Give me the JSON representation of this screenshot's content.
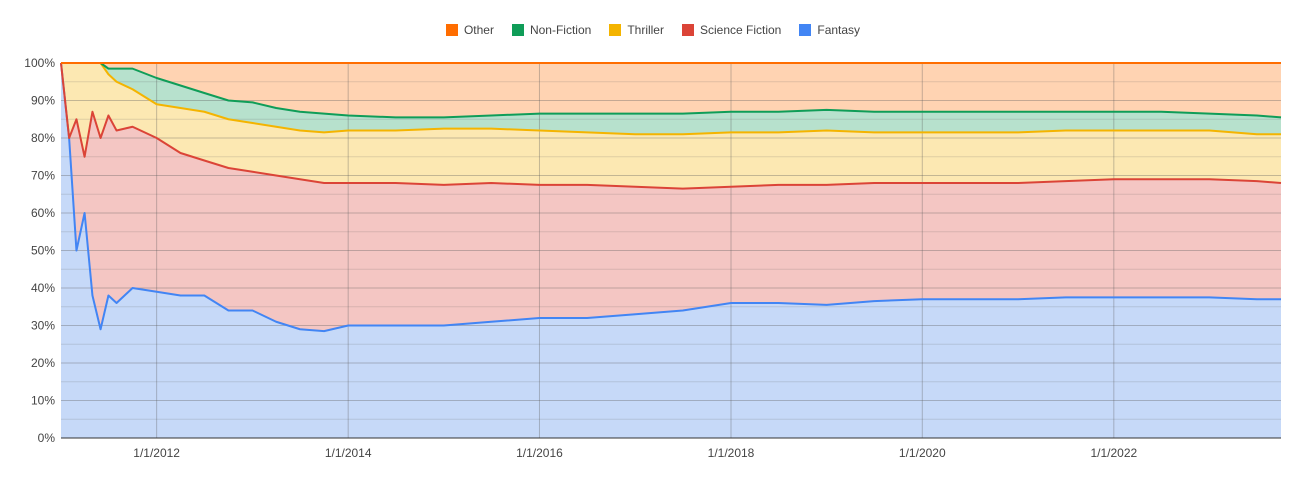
{
  "chart_data": {
    "type": "area",
    "stacked": "percent",
    "xlabel": "",
    "ylabel": "",
    "x_range": [
      "2011-01-01",
      "2023-10-01"
    ],
    "ylim": [
      0,
      100
    ],
    "y_ticks": [
      "0%",
      "10%",
      "20%",
      "30%",
      "40%",
      "50%",
      "60%",
      "70%",
      "80%",
      "90%",
      "100%"
    ],
    "x_tick_labels": [
      {
        "date": "2012-01-01",
        "label": "1/1/2012"
      },
      {
        "date": "2014-01-01",
        "label": "1/1/2014"
      },
      {
        "date": "2016-01-01",
        "label": "1/1/2016"
      },
      {
        "date": "2018-01-01",
        "label": "1/1/2018"
      },
      {
        "date": "2020-01-01",
        "label": "1/1/2020"
      },
      {
        "date": "2022-01-01",
        "label": "1/1/2022"
      }
    ],
    "grid": true,
    "legend_position": "top-center",
    "dates": [
      "2011-01-01",
      "2011-02-01",
      "2011-03-01",
      "2011-04-01",
      "2011-05-01",
      "2011-06-01",
      "2011-07-01",
      "2011-08-01",
      "2011-10-01",
      "2012-01-01",
      "2012-04-01",
      "2012-07-01",
      "2012-10-01",
      "2013-01-01",
      "2013-04-01",
      "2013-07-01",
      "2013-10-01",
      "2014-01-01",
      "2014-07-01",
      "2015-01-01",
      "2015-07-01",
      "2016-01-01",
      "2016-07-01",
      "2017-01-01",
      "2017-07-01",
      "2018-01-01",
      "2018-07-01",
      "2019-01-01",
      "2019-07-01",
      "2020-01-01",
      "2020-07-01",
      "2021-01-01",
      "2021-07-01",
      "2022-01-01",
      "2022-07-01",
      "2023-01-01",
      "2023-07-01",
      "2023-10-01"
    ],
    "series": [
      {
        "name": "Fantasy",
        "color": "#4285F4",
        "fill": "#C6D9F8",
        "cumulative": [
          100,
          80,
          50,
          60,
          38,
          29,
          38,
          36,
          40,
          39,
          38,
          38,
          34,
          34,
          31,
          29,
          28.5,
          30,
          30,
          30,
          31,
          32,
          32,
          33,
          34,
          36,
          36,
          35.5,
          36.5,
          37,
          37,
          37,
          37.5,
          37.5,
          37.5,
          37.5,
          37,
          37
        ]
      },
      {
        "name": "Science Fiction",
        "color": "#DB4437",
        "fill": "#F4C6C3",
        "cumulative": [
          100,
          80,
          85,
          75,
          87,
          80,
          86,
          82,
          83,
          80,
          76,
          74,
          72,
          71,
          70,
          69,
          68,
          68,
          68,
          67.5,
          68,
          67.5,
          67.5,
          67,
          66.5,
          67,
          67.5,
          67.5,
          68,
          68,
          68,
          68,
          68.5,
          69,
          69,
          69,
          68.5,
          68
        ]
      },
      {
        "name": "Thriller",
        "color": "#F4B400",
        "fill": "#FCE8B2",
        "cumulative": [
          100,
          100,
          100,
          100,
          100,
          100,
          97,
          95,
          93,
          89,
          88,
          87,
          85,
          84,
          83,
          82,
          81.5,
          82,
          82,
          82.5,
          82.5,
          82,
          81.5,
          81,
          81,
          81.5,
          81.5,
          82,
          81.5,
          81.5,
          81.5,
          81.5,
          82,
          82,
          82,
          82,
          81,
          81
        ]
      },
      {
        "name": "Non-Fiction",
        "color": "#0F9D58",
        "fill": "#B7E1CD",
        "cumulative": [
          100,
          100,
          100,
          100,
          100,
          100,
          98.5,
          98.5,
          98.5,
          96,
          94,
          92,
          90,
          89.5,
          88,
          87,
          86.5,
          86,
          85.5,
          85.5,
          86,
          86.5,
          86.5,
          86.5,
          86.5,
          87,
          87,
          87.5,
          87,
          87,
          87,
          87,
          87,
          87,
          87,
          86.5,
          86,
          85.5
        ]
      },
      {
        "name": "Other",
        "color": "#FF6D00",
        "fill": "#FFD3B2",
        "cumulative": [
          100,
          100,
          100,
          100,
          100,
          100,
          100,
          100,
          100,
          100,
          100,
          100,
          100,
          100,
          100,
          100,
          100,
          100,
          100,
          100,
          100,
          100,
          100,
          100,
          100,
          100,
          100,
          100,
          100,
          100,
          100,
          100,
          100,
          100,
          100,
          100,
          100,
          100
        ]
      }
    ],
    "legend_order": [
      "Other",
      "Non-Fiction",
      "Thriller",
      "Science Fiction",
      "Fantasy"
    ]
  }
}
